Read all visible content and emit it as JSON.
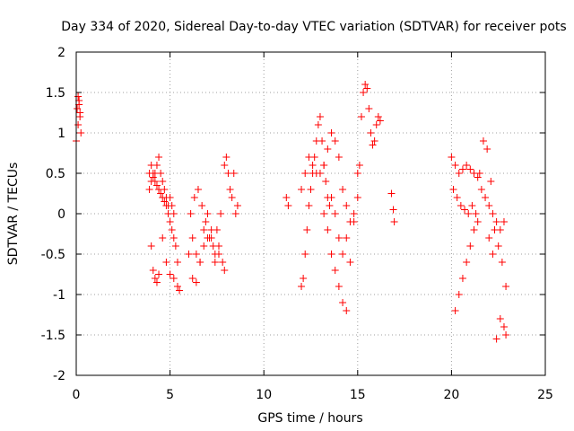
{
  "chart_data": {
    "type": "scatter",
    "title": "Day 334 of 2020, Sidereal Day-to-day VTEC variation (SDTVAR) for receiver pots",
    "xlabel": "GPS time / hours",
    "ylabel": "SDTVAR / TECUs",
    "xlim": [
      0,
      25
    ],
    "ylim": [
      -2,
      2
    ],
    "xticks": [
      0,
      5,
      10,
      15,
      20,
      25
    ],
    "xtick_labels": [
      "0",
      "5",
      "10",
      "15",
      "20",
      "25"
    ],
    "yticks": [
      -2,
      -1.5,
      -1,
      -0.5,
      0,
      0.5,
      1,
      1.5,
      2
    ],
    "ytick_labels": [
      "-2",
      "-1.5",
      "-1",
      "-0.5",
      "0",
      "0.5",
      "1",
      "1.5",
      "2"
    ],
    "grid": true,
    "marker": "+",
    "color": "#ff0000",
    "series": [
      {
        "name": "SDTVAR",
        "x": [
          0.0,
          0.05,
          0.1,
          0.15,
          0.2,
          0.25,
          0.1,
          0.15,
          0.2,
          3.9,
          4.0,
          4.1,
          4.2,
          4.3,
          4.4,
          4.5,
          4.6,
          4.7,
          4.8,
          4.9,
          5.0,
          5.1,
          5.2,
          5.3,
          5.4,
          3.9,
          4.0,
          4.1,
          4.2,
          4.3,
          4.4,
          4.5,
          4.6,
          4.7,
          4.8,
          4.9,
          5.0,
          5.1,
          5.2,
          4.0,
          4.1,
          4.2,
          4.3,
          4.4,
          4.6,
          4.8,
          5.0,
          5.2,
          5.4,
          5.5,
          6.0,
          6.2,
          6.4,
          6.6,
          6.8,
          7.0,
          7.2,
          7.4,
          7.6,
          7.8,
          6.1,
          6.3,
          6.5,
          6.7,
          6.9,
          7.1,
          7.3,
          7.5,
          7.7,
          7.9,
          6.2,
          6.4,
          6.6,
          6.8,
          7.0,
          7.2,
          7.4,
          7.6,
          7.9,
          8.0,
          8.1,
          8.2,
          8.3,
          8.4,
          8.5,
          8.6,
          11.2,
          11.3,
          12.0,
          12.1,
          12.2,
          12.3,
          12.4,
          12.5,
          12.6,
          12.7,
          12.8,
          12.9,
          13.0,
          13.1,
          13.2,
          13.3,
          13.4,
          13.5,
          12.0,
          12.2,
          12.4,
          12.6,
          12.8,
          13.0,
          13.2,
          13.4,
          13.6,
          13.8,
          14.0,
          14.2,
          14.4,
          13.2,
          13.4,
          13.6,
          13.8,
          14.0,
          14.2,
          14.4,
          14.6,
          14.8,
          15.0,
          13.6,
          13.8,
          14.0,
          14.2,
          14.4,
          14.6,
          14.8,
          15.0,
          15.1,
          15.2,
          15.3,
          15.4,
          15.5,
          15.6,
          15.7,
          15.8,
          15.9,
          16.0,
          16.1,
          16.2,
          16.8,
          16.9,
          16.95,
          20.0,
          20.2,
          20.4,
          20.6,
          20.8,
          21.0,
          21.2,
          21.4,
          21.6,
          21.8,
          22.0,
          22.2,
          22.4,
          22.6,
          22.8,
          20.1,
          20.3,
          20.5,
          20.7,
          20.9,
          21.1,
          21.3,
          21.5,
          21.7,
          21.9,
          22.1,
          22.3,
          22.5,
          22.7,
          22.9,
          20.2,
          20.4,
          20.6,
          20.8,
          21.0,
          21.2,
          21.4,
          22.0,
          22.2,
          22.4,
          22.6,
          22.8,
          22.9
        ],
        "y": [
          0.9,
          1.3,
          1.45,
          1.4,
          1.2,
          1.0,
          1.1,
          1.35,
          1.25,
          0.5,
          0.6,
          0.5,
          0.4,
          0.35,
          0.3,
          0.25,
          0.2,
          0.15,
          0.1,
          0.0,
          -0.1,
          -0.2,
          -0.3,
          -0.4,
          -0.6,
          0.3,
          0.4,
          0.45,
          0.5,
          0.6,
          0.7,
          0.5,
          0.4,
          0.3,
          0.2,
          0.1,
          0.2,
          0.1,
          0.0,
          -0.4,
          -0.7,
          -0.8,
          -0.85,
          -0.75,
          -0.3,
          -0.6,
          -0.75,
          -0.8,
          -0.9,
          -0.95,
          -0.5,
          -0.8,
          -0.85,
          -0.6,
          -0.2,
          0.0,
          -0.3,
          -0.5,
          -0.4,
          -0.6,
          0.0,
          0.2,
          0.3,
          0.1,
          -0.1,
          -0.3,
          -0.4,
          -0.2,
          0.0,
          -0.7,
          -0.3,
          -0.5,
          -0.6,
          -0.4,
          -0.3,
          -0.2,
          -0.6,
          -0.5,
          0.6,
          0.7,
          0.5,
          0.3,
          0.2,
          0.5,
          0.0,
          0.1,
          0.2,
          0.1,
          -0.9,
          -0.8,
          -0.5,
          -0.2,
          0.1,
          0.3,
          0.5,
          0.7,
          0.9,
          1.1,
          1.2,
          0.9,
          0.6,
          0.4,
          0.2,
          0.1,
          0.3,
          0.5,
          0.7,
          0.6,
          0.5,
          0.5,
          0.6,
          0.8,
          1.0,
          0.9,
          0.7,
          0.3,
          0.1,
          0.0,
          -0.2,
          -0.5,
          -0.7,
          -0.9,
          -1.1,
          -1.2,
          -0.6,
          -0.1,
          0.2,
          0.2,
          0.0,
          -0.3,
          -0.5,
          -0.3,
          -0.1,
          0.0,
          0.5,
          0.6,
          1.2,
          1.5,
          1.6,
          1.55,
          1.3,
          1.0,
          0.85,
          0.9,
          1.1,
          1.2,
          1.15,
          0.25,
          0.05,
          -0.1,
          0.7,
          0.6,
          0.5,
          0.55,
          0.6,
          0.55,
          0.5,
          0.45,
          0.3,
          0.2,
          0.1,
          0.0,
          -0.1,
          -0.2,
          -0.1,
          0.3,
          0.2,
          0.1,
          0.05,
          0.0,
          0.1,
          0.0,
          0.5,
          0.9,
          0.8,
          0.4,
          -0.2,
          -0.4,
          -0.6,
          -0.9,
          -1.2,
          -1.0,
          -0.8,
          -0.6,
          -0.4,
          -0.2,
          -0.1,
          -0.3,
          -0.5,
          -1.55,
          -1.3,
          -1.4,
          -1.5
        ]
      }
    ]
  }
}
